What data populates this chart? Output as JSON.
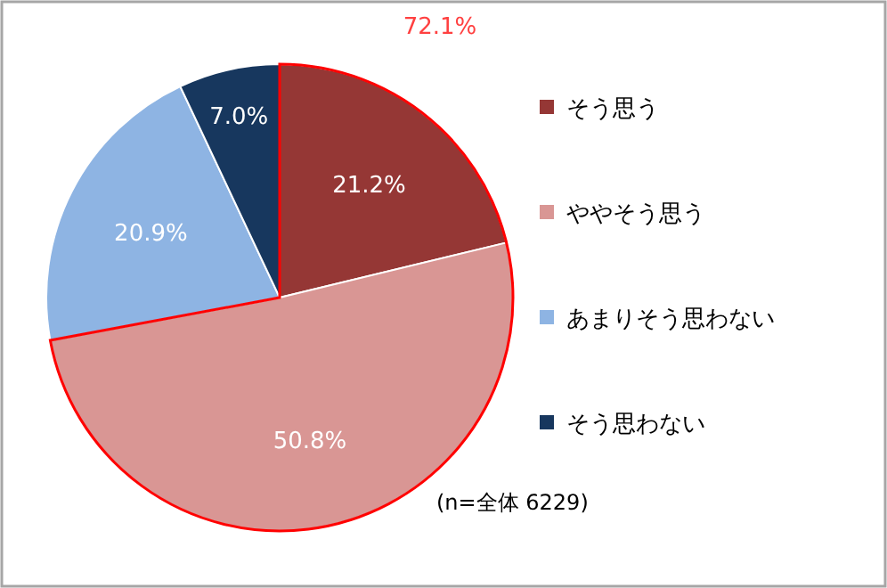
{
  "chart_data": {
    "type": "pie",
    "categories": [
      "そう思う",
      "ややそう思う",
      "あまりそう思わない",
      "そう思わない"
    ],
    "values": [
      21.2,
      50.8,
      20.9,
      7.0
    ],
    "colors": [
      "#953735",
      "#d99694",
      "#8eb4e3",
      "#17375e"
    ],
    "value_labels": [
      "21.2%",
      "50.8%",
      "20.9%",
      "7.0%"
    ],
    "legend": "right",
    "annotations": [
      "72.1%",
      "(n=全体 6229)"
    ]
  }
}
